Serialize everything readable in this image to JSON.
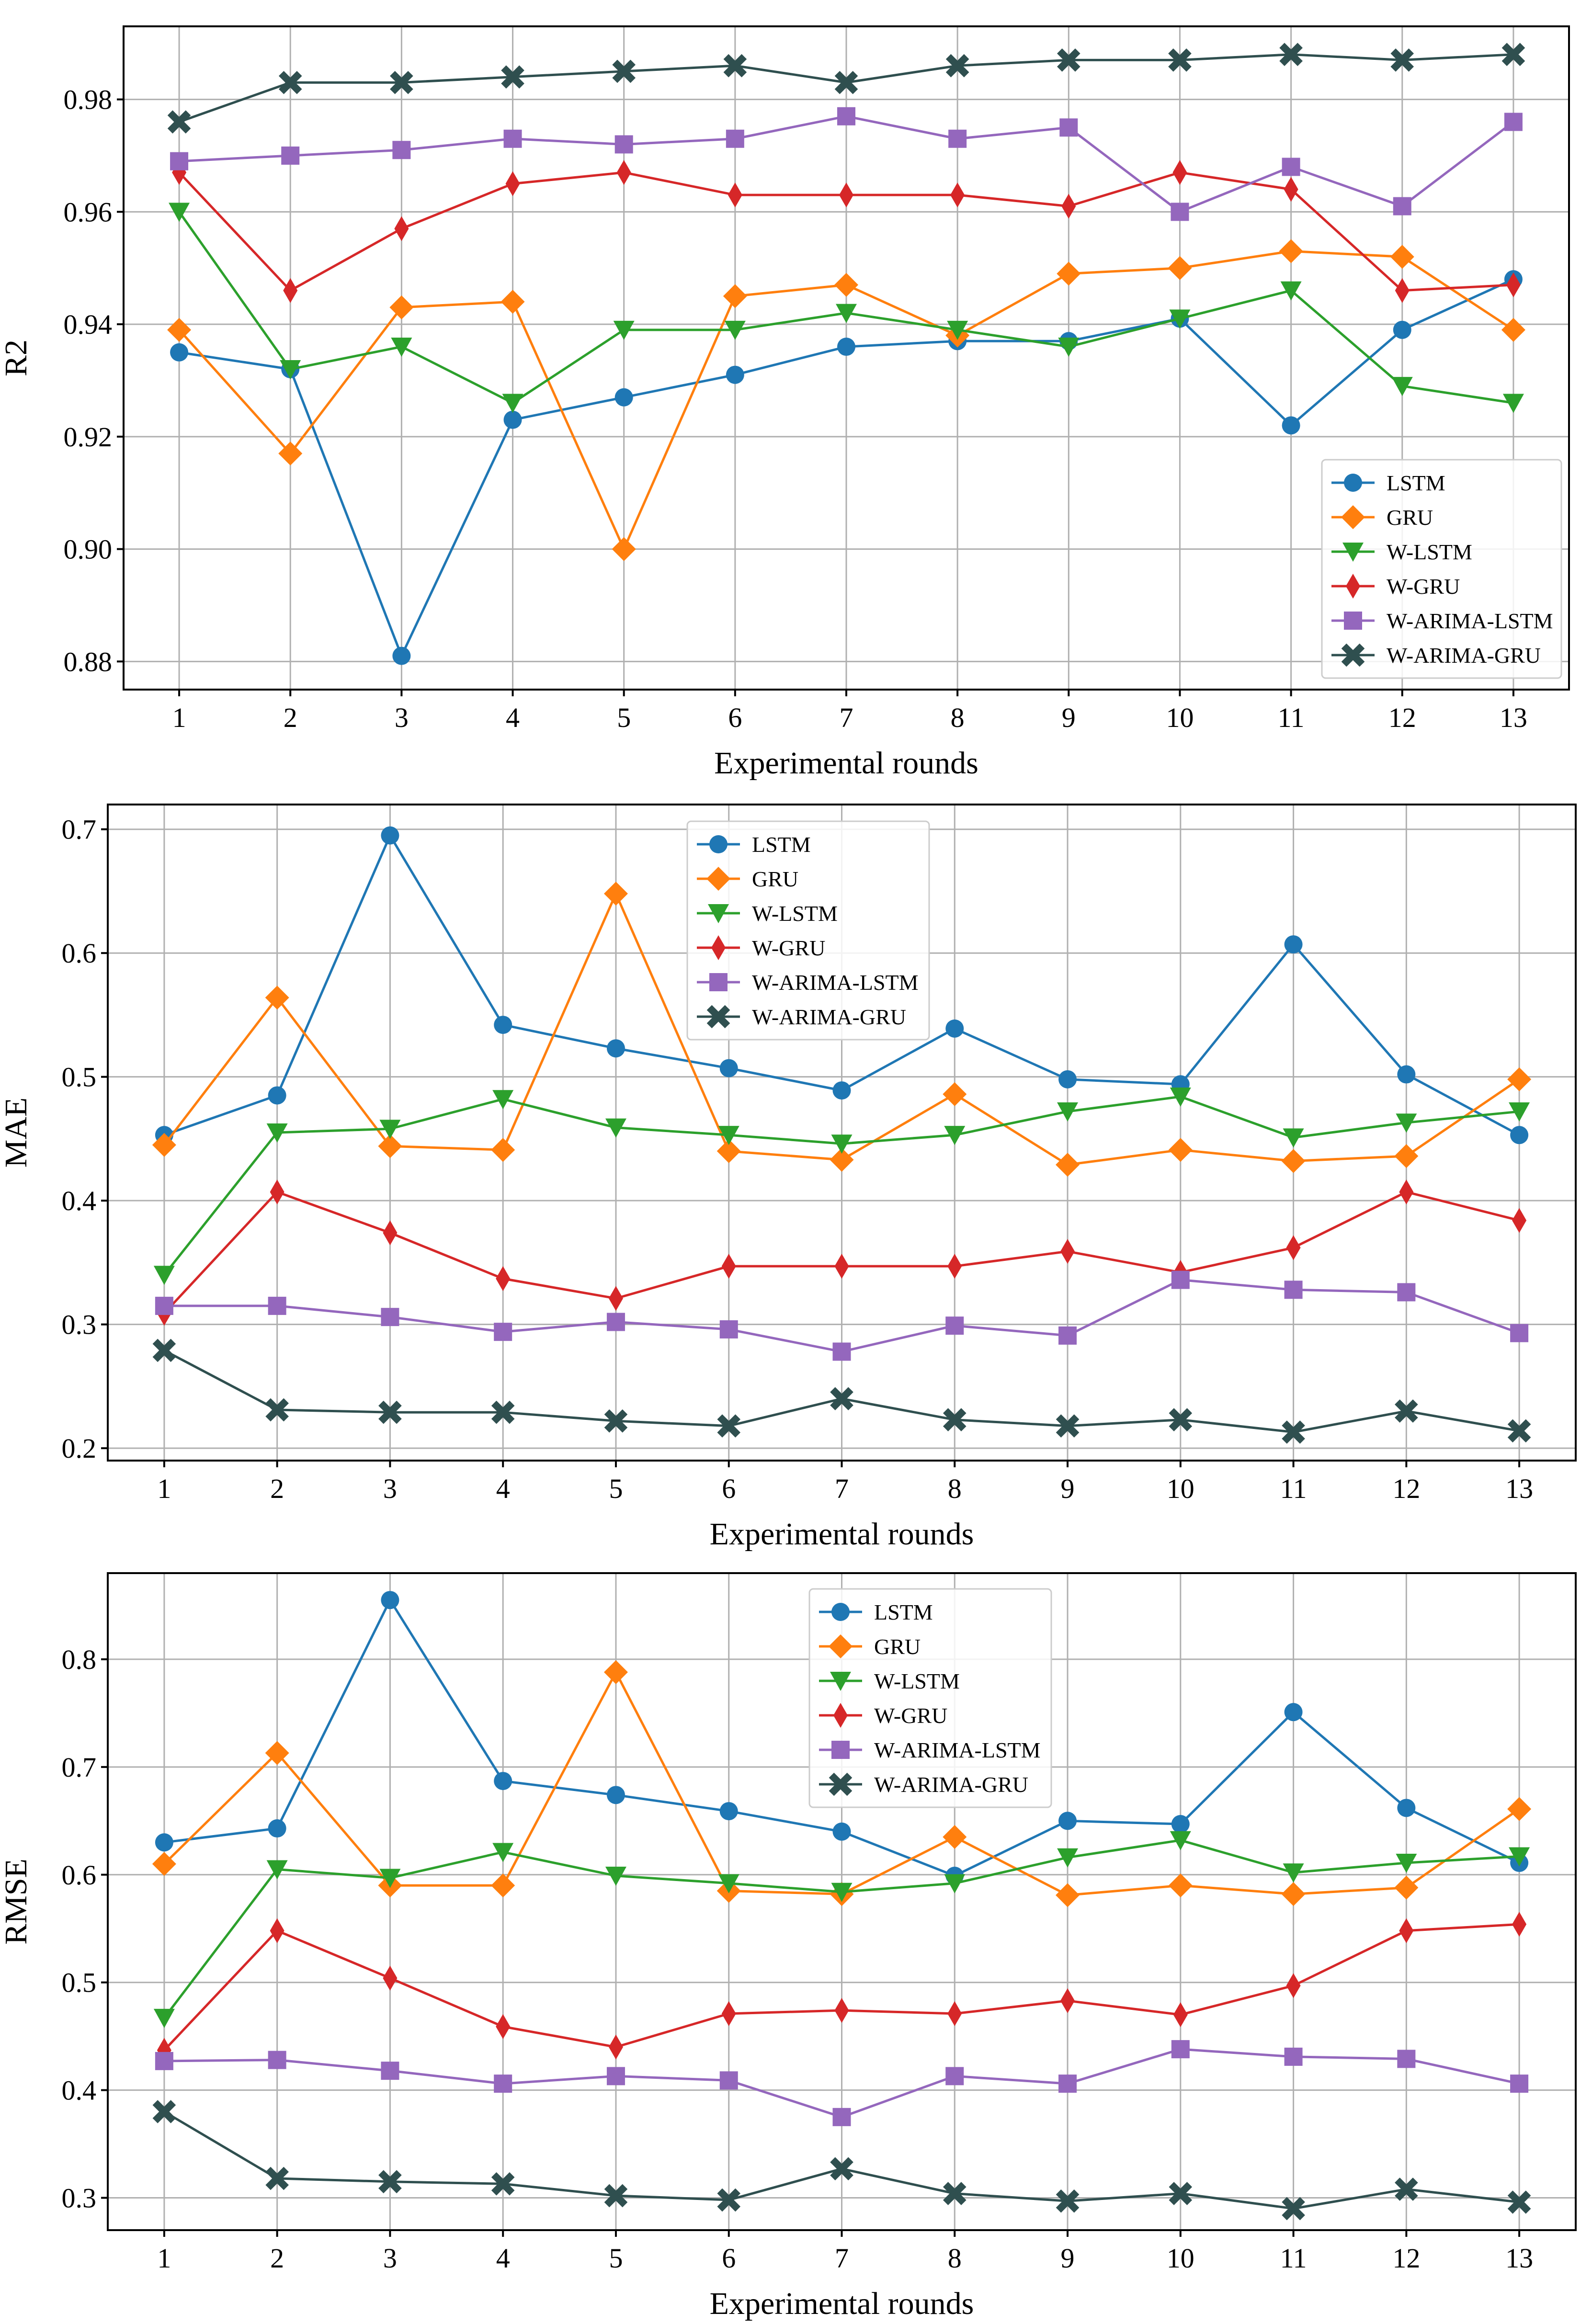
{
  "chart_data": [
    {
      "type": "line",
      "ylabel": "R2",
      "xlabel": "Experimental rounds",
      "x": [
        1,
        2,
        3,
        4,
        5,
        6,
        7,
        8,
        9,
        10,
        11,
        12,
        13
      ],
      "ylim": [
        0.875,
        0.993
      ],
      "yticks": [
        0.88,
        0.9,
        0.92,
        0.94,
        0.96,
        0.98
      ],
      "ytick_labels": [
        "0.88",
        "0.90",
        "0.92",
        "0.94",
        "0.96",
        "0.98"
      ],
      "grid": true,
      "legend_position": "lower-right",
      "series": [
        {
          "name": "LSTM",
          "color": "#1f77b4",
          "marker": "circle",
          "values": [
            0.935,
            0.932,
            0.881,
            0.923,
            0.927,
            0.931,
            0.936,
            0.937,
            0.937,
            0.941,
            0.922,
            0.939,
            0.948
          ]
        },
        {
          "name": "GRU",
          "color": "#ff7f0e",
          "marker": "diamond",
          "values": [
            0.939,
            0.917,
            0.943,
            0.944,
            0.9,
            0.945,
            0.947,
            0.938,
            0.949,
            0.95,
            0.953,
            0.952,
            0.939
          ]
        },
        {
          "name": "W-LSTM",
          "color": "#2ca02c",
          "marker": "triangle-down",
          "values": [
            0.96,
            0.932,
            0.936,
            0.926,
            0.939,
            0.939,
            0.942,
            0.939,
            0.936,
            0.941,
            0.946,
            0.929,
            0.926
          ]
        },
        {
          "name": "W-GRU",
          "color": "#d62728",
          "marker": "thin-diamond",
          "values": [
            0.967,
            0.946,
            0.957,
            0.965,
            0.967,
            0.963,
            0.963,
            0.963,
            0.961,
            0.967,
            0.964,
            0.946,
            0.947
          ]
        },
        {
          "name": "W-ARIMA-LSTM",
          "color": "#9467bd",
          "marker": "square",
          "values": [
            0.969,
            0.97,
            0.971,
            0.973,
            0.972,
            0.973,
            0.977,
            0.973,
            0.975,
            0.96,
            0.968,
            0.961,
            0.976
          ]
        },
        {
          "name": "W-ARIMA-GRU",
          "color": "#2f4f4f",
          "marker": "x",
          "values": [
            0.976,
            0.983,
            0.983,
            0.984,
            0.985,
            0.986,
            0.983,
            0.986,
            0.987,
            0.987,
            0.988,
            0.987,
            0.988
          ]
        }
      ]
    },
    {
      "type": "line",
      "ylabel": "MAE",
      "xlabel": "Experimental rounds",
      "x": [
        1,
        2,
        3,
        4,
        5,
        6,
        7,
        8,
        9,
        10,
        11,
        12,
        13
      ],
      "ylim": [
        0.19,
        0.72
      ],
      "yticks": [
        0.2,
        0.3,
        0.4,
        0.5,
        0.6,
        0.7
      ],
      "ytick_labels": [
        "0.2",
        "0.3",
        "0.4",
        "0.5",
        "0.6",
        "0.7"
      ],
      "grid": true,
      "legend_position": "upper-center",
      "series": [
        {
          "name": "LSTM",
          "color": "#1f77b4",
          "marker": "circle",
          "values": [
            0.453,
            0.485,
            0.695,
            0.542,
            0.523,
            0.507,
            0.489,
            0.539,
            0.498,
            0.494,
            0.607,
            0.502,
            0.453
          ]
        },
        {
          "name": "GRU",
          "color": "#ff7f0e",
          "marker": "diamond",
          "values": [
            0.445,
            0.564,
            0.444,
            0.441,
            0.648,
            0.44,
            0.433,
            0.486,
            0.429,
            0.441,
            0.432,
            0.436,
            0.498
          ]
        },
        {
          "name": "W-LSTM",
          "color": "#2ca02c",
          "marker": "triangle-down",
          "values": [
            0.34,
            0.455,
            0.458,
            0.482,
            0.459,
            0.453,
            0.446,
            0.453,
            0.472,
            0.484,
            0.451,
            0.463,
            0.472
          ]
        },
        {
          "name": "W-GRU",
          "color": "#d62728",
          "marker": "thin-diamond",
          "values": [
            0.309,
            0.407,
            0.374,
            0.337,
            0.321,
            0.347,
            0.347,
            0.347,
            0.359,
            0.342,
            0.362,
            0.407,
            0.384
          ]
        },
        {
          "name": "W-ARIMA-LSTM",
          "color": "#9467bd",
          "marker": "square",
          "values": [
            0.315,
            0.315,
            0.306,
            0.294,
            0.302,
            0.296,
            0.278,
            0.299,
            0.291,
            0.336,
            0.328,
            0.326,
            0.293
          ]
        },
        {
          "name": "W-ARIMA-GRU",
          "color": "#2f4f4f",
          "marker": "x",
          "values": [
            0.279,
            0.231,
            0.229,
            0.229,
            0.222,
            0.218,
            0.24,
            0.223,
            0.218,
            0.223,
            0.213,
            0.23,
            0.214
          ]
        }
      ]
    },
    {
      "type": "line",
      "ylabel": "RMSE",
      "xlabel": "Experimental rounds",
      "x": [
        1,
        2,
        3,
        4,
        5,
        6,
        7,
        8,
        9,
        10,
        11,
        12,
        13
      ],
      "ylim": [
        0.27,
        0.88
      ],
      "yticks": [
        0.3,
        0.4,
        0.5,
        0.6,
        0.7,
        0.8
      ],
      "ytick_labels": [
        "0.3",
        "0.4",
        "0.5",
        "0.6",
        "0.7",
        "0.8"
      ],
      "grid": true,
      "legend_position": "upper-center",
      "series": [
        {
          "name": "LSTM",
          "color": "#1f77b4",
          "marker": "circle",
          "values": [
            0.63,
            0.643,
            0.855,
            0.687,
            0.674,
            0.659,
            0.64,
            0.599,
            0.65,
            0.647,
            0.751,
            0.662,
            0.611
          ]
        },
        {
          "name": "GRU",
          "color": "#ff7f0e",
          "marker": "diamond",
          "values": [
            0.61,
            0.713,
            0.59,
            0.59,
            0.788,
            0.585,
            0.582,
            0.635,
            0.581,
            0.59,
            0.582,
            0.588,
            0.661
          ]
        },
        {
          "name": "W-LSTM",
          "color": "#2ca02c",
          "marker": "triangle-down",
          "values": [
            0.467,
            0.605,
            0.597,
            0.621,
            0.599,
            0.592,
            0.584,
            0.592,
            0.616,
            0.632,
            0.602,
            0.611,
            0.617
          ]
        },
        {
          "name": "W-GRU",
          "color": "#d62728",
          "marker": "thin-diamond",
          "values": [
            0.437,
            0.548,
            0.504,
            0.459,
            0.44,
            0.471,
            0.474,
            0.471,
            0.483,
            0.47,
            0.497,
            0.548,
            0.554
          ]
        },
        {
          "name": "W-ARIMA-LSTM",
          "color": "#9467bd",
          "marker": "square",
          "values": [
            0.427,
            0.428,
            0.418,
            0.406,
            0.413,
            0.409,
            0.375,
            0.413,
            0.406,
            0.438,
            0.431,
            0.429,
            0.406
          ]
        },
        {
          "name": "W-ARIMA-GRU",
          "color": "#2f4f4f",
          "marker": "x",
          "values": [
            0.38,
            0.318,
            0.315,
            0.313,
            0.302,
            0.298,
            0.327,
            0.304,
            0.297,
            0.304,
            0.29,
            0.308,
            0.296
          ]
        }
      ]
    }
  ]
}
